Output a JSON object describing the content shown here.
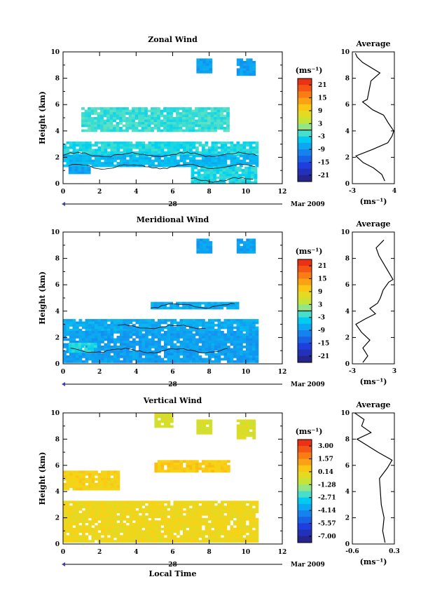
{
  "chart_data": [
    {
      "type": "heatmap",
      "title": "Zonal Wind",
      "ylabel": "Height (km)",
      "xlim": [
        0,
        12
      ],
      "ylim": [
        0,
        10
      ],
      "xticks": [
        "0",
        "2",
        "4",
        "6",
        "8",
        "10",
        "12"
      ],
      "yticks": [
        "0",
        "2",
        "4",
        "6",
        "8",
        "10"
      ],
      "date_marker": "28",
      "date_label": "Mar 2009",
      "colorbar": {
        "unit": "(ms⁻¹)",
        "ticks": [
          "21",
          "15",
          "9",
          "3",
          "-3",
          "-9",
          "-15",
          "-21"
        ],
        "range": [
          -24,
          24
        ],
        "contour_level": 0
      },
      "regions": [
        {
          "x": [
            0,
            10.6
          ],
          "y": [
            2.2,
            3.2
          ],
          "v": -3
        },
        {
          "x": [
            0,
            10.6
          ],
          "y": [
            1.3,
            2.2
          ],
          "v": -6
        },
        {
          "x": [
            7,
            10.6
          ],
          "y": [
            0.1,
            1.3
          ],
          "v": -3
        },
        {
          "x": [
            0.3,
            1.5
          ],
          "y": [
            0.8,
            1.3
          ],
          "v": -8
        },
        {
          "x": [
            7.3,
            8
          ],
          "y": [
            8.5,
            9.5
          ],
          "v": -8
        },
        {
          "x": [
            9.5,
            10.5
          ],
          "y": [
            8.2,
            9.5
          ],
          "v": -8
        },
        {
          "x": [
            1,
            9
          ],
          "y": [
            4.0,
            5.8
          ],
          "v": -2
        }
      ],
      "average": {
        "xlim": [
          -3,
          4
        ],
        "xticks": [
          "-3",
          "4"
        ],
        "xlabel": "(ms⁻¹)",
        "title": "Average",
        "yticks": [
          "0",
          "2",
          "4",
          "6",
          "8",
          "10"
        ],
        "profile": [
          [
            0.2,
            2.4
          ],
          [
            0.7,
            1.9
          ],
          [
            1.2,
            0.5
          ],
          [
            1.6,
            -1.2
          ],
          [
            2.1,
            -2.4
          ],
          [
            2.6,
            0.4
          ],
          [
            3.1,
            2.9
          ],
          [
            3.6,
            3.6
          ],
          [
            4.0,
            3.9
          ],
          [
            4.6,
            3.0
          ],
          [
            5.2,
            2.2
          ],
          [
            5.6,
            0.4
          ],
          [
            6.2,
            -1.3
          ],
          [
            6.4,
            -0.5
          ],
          [
            7.8,
            0.1
          ],
          [
            8.4,
            1.6
          ],
          [
            9.2,
            -1.3
          ],
          [
            9.6,
            -2.2
          ],
          [
            9.9,
            -2.5
          ]
        ]
      }
    },
    {
      "type": "heatmap",
      "title": "Meridional Wind",
      "ylabel": "Height (km)",
      "xlim": [
        0,
        12
      ],
      "ylim": [
        0,
        10
      ],
      "xticks": [
        "0",
        "2",
        "4",
        "6",
        "8",
        "10",
        "12"
      ],
      "yticks": [
        "0",
        "2",
        "4",
        "6",
        "8",
        "10"
      ],
      "date_marker": "28",
      "date_label": "Mar 2009",
      "colorbar": {
        "unit": "(ms⁻¹)",
        "ticks": [
          "21",
          "15",
          "9",
          "3",
          "-3",
          "-9",
          "-15",
          "-21"
        ],
        "range": [
          -24,
          24
        ],
        "contour_level": 0
      },
      "regions": [
        {
          "x": [
            0,
            10.6
          ],
          "y": [
            2.5,
            3.4
          ],
          "v": -7
        },
        {
          "x": [
            0,
            10.6
          ],
          "y": [
            0.2,
            2.5
          ],
          "v": -8
        },
        {
          "x": [
            0.3,
            1.8
          ],
          "y": [
            1.0,
            1.6
          ],
          "v": -3
        },
        {
          "x": [
            4.8,
            9.5
          ],
          "y": [
            4.3,
            4.7
          ],
          "v": -7
        },
        {
          "x": [
            7.3,
            8
          ],
          "y": [
            8.5,
            9.5
          ],
          "v": -8
        },
        {
          "x": [
            9.5,
            10.5
          ],
          "y": [
            8.5,
            9.5
          ],
          "v": -8
        }
      ],
      "average": {
        "xlim": [
          -3,
          3
        ],
        "xticks": [
          "-3",
          "3"
        ],
        "xlabel": "(ms⁻¹)",
        "title": "Average",
        "yticks": [
          "0",
          "2",
          "4",
          "6",
          "8",
          "10"
        ],
        "profile": [
          [
            0.1,
            -1.5
          ],
          [
            0.6,
            -0.8
          ],
          [
            1.2,
            -1.5
          ],
          [
            1.8,
            -0.5
          ],
          [
            2.4,
            -1.7
          ],
          [
            3.0,
            -2.5
          ],
          [
            3.4,
            -1.2
          ],
          [
            3.8,
            0.3
          ],
          [
            4.2,
            -0.5
          ],
          [
            4.6,
            0.6
          ],
          [
            5.0,
            1.0
          ],
          [
            5.6,
            1.4
          ],
          [
            6.2,
            2.2
          ],
          [
            6.4,
            2.8
          ],
          [
            8.2,
            0.8
          ],
          [
            8.8,
            0.4
          ],
          [
            9.4,
            1.5
          ]
        ]
      }
    },
    {
      "type": "heatmap",
      "title": "Vertical Wind",
      "xlabel": "Local Time",
      "ylabel": "Height (km)",
      "xlim": [
        0,
        12
      ],
      "ylim": [
        0,
        10
      ],
      "xticks": [
        "0",
        "2",
        "4",
        "6",
        "8",
        "10",
        "12"
      ],
      "yticks": [
        "0",
        "2",
        "4",
        "6",
        "8",
        "10"
      ],
      "date_marker": "28",
      "date_label": "Mar 2009",
      "colorbar": {
        "unit": "(ms⁻¹)",
        "ticks": [
          "3.00",
          "1.57",
          "0.14",
          "-1.28",
          "-2.71",
          "-4.14",
          "-5.57",
          "-7.00"
        ],
        "range": [
          -7.7,
          3.7
        ],
        "contour_level": null
      },
      "regions": [
        {
          "x": [
            0,
            10.6
          ],
          "y": [
            0.2,
            3.3
          ],
          "v": 0.0
        },
        {
          "x": [
            0,
            3
          ],
          "y": [
            4.2,
            5.6
          ],
          "v": 0.2
        },
        {
          "x": [
            5,
            9
          ],
          "y": [
            5.6,
            6.4
          ],
          "v": 0.4
        },
        {
          "x": [
            5,
            6
          ],
          "y": [
            8.9,
            10
          ],
          "v": -0.5
        },
        {
          "x": [
            7.3,
            8
          ],
          "y": [
            8.5,
            9.5
          ],
          "v": -0.5
        },
        {
          "x": [
            9.5,
            10.5
          ],
          "y": [
            8.1,
            9.5
          ],
          "v": -0.5
        }
      ],
      "average": {
        "xlim": [
          -0.6,
          0.3
        ],
        "xticks": [
          "-0.6",
          "0.3"
        ],
        "xlabel": "(ms⁻¹)",
        "title": "Average",
        "yticks": [
          "0",
          "2",
          "4",
          "6",
          "8",
          "10"
        ],
        "profile": [
          [
            0.1,
            0.1
          ],
          [
            1.0,
            0.05
          ],
          [
            2.0,
            0.08
          ],
          [
            3.0,
            0.02
          ],
          [
            4.0,
            0.0
          ],
          [
            5.0,
            -0.02
          ],
          [
            5.8,
            0.15
          ],
          [
            6.4,
            0.25
          ],
          [
            7.0,
            -0.05
          ],
          [
            8.0,
            -0.5
          ],
          [
            8.5,
            -0.2
          ],
          [
            9.0,
            -0.4
          ],
          [
            9.5,
            -0.35
          ],
          [
            10.0,
            -0.55
          ]
        ]
      }
    }
  ]
}
